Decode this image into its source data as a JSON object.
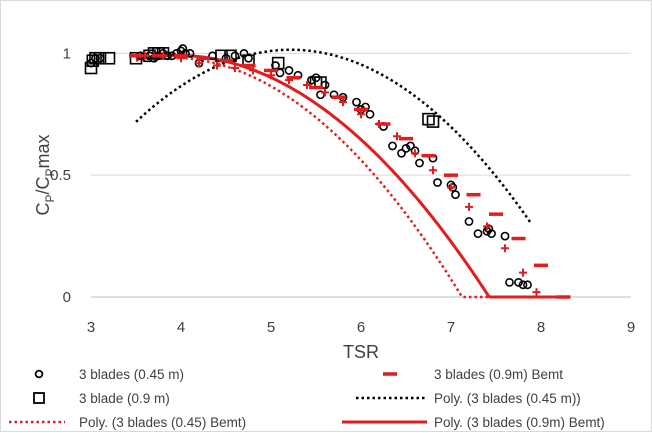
{
  "chart_data": {
    "type": "scatter",
    "title": "",
    "xlabel": "TSR",
    "ylabel_main": "C",
    "ylabel_sub1": "P",
    "ylabel_mid": "/C",
    "ylabel_sub2": "P",
    "ylabel_end": "max",
    "xlim": [
      3,
      9
    ],
    "ylim": [
      0,
      1.1
    ],
    "x_ticks": [
      3,
      4,
      5,
      6,
      7,
      8,
      9
    ],
    "y_ticks": [
      0,
      0.5,
      1
    ],
    "x_tick_labels": [
      "3",
      "4",
      "5",
      "6",
      "7",
      "8",
      "9"
    ],
    "y_tick_labels": [
      "0",
      "0.5",
      "1"
    ],
    "grid": "horizontal",
    "legend_position": "bottom",
    "series": [
      {
        "name": "3 blades (0.45 m)",
        "marker": "circle",
        "color": "#000000",
        "x": [
          3.0,
          3.05,
          3.1,
          3.55,
          3.65,
          3.7,
          3.75,
          3.8,
          3.85,
          3.9,
          3.95,
          4.0,
          4.02,
          4.05,
          4.1,
          4.2,
          4.35,
          4.5,
          4.6,
          4.7,
          4.75,
          5.05,
          5.1,
          5.2,
          5.3,
          5.45,
          5.5,
          5.55,
          5.6,
          5.7,
          5.8,
          5.95,
          6.0,
          6.05,
          6.1,
          6.25,
          6.35,
          6.45,
          6.5,
          6.55,
          6.6,
          6.65,
          6.8,
          6.85,
          7.0,
          7.02,
          7.05,
          7.2,
          7.3,
          7.4,
          7.42,
          7.45,
          7.6,
          7.65,
          7.75,
          7.8,
          7.85
        ],
        "y": [
          0.96,
          0.98,
          0.98,
          0.99,
          0.99,
          0.98,
          0.99,
          1.0,
          0.99,
          0.99,
          1.0,
          1.01,
          1.02,
          1.0,
          1.0,
          0.96,
          0.99,
          0.98,
          0.99,
          1.0,
          0.98,
          0.95,
          0.92,
          0.93,
          0.91,
          0.89,
          0.9,
          0.83,
          0.87,
          0.83,
          0.82,
          0.8,
          0.77,
          0.78,
          0.75,
          0.7,
          0.62,
          0.59,
          0.61,
          0.62,
          0.6,
          0.55,
          0.57,
          0.47,
          0.46,
          0.45,
          0.42,
          0.31,
          0.26,
          0.27,
          0.28,
          0.26,
          0.25,
          0.06,
          0.06,
          0.05,
          0.05
        ]
      },
      {
        "name": "3 blade (0.9 m)",
        "marker": "square",
        "color": "#000000",
        "x": [
          3.0,
          3.02,
          3.05,
          3.1,
          3.2,
          3.5,
          3.65,
          3.7,
          3.75,
          3.8,
          4.45,
          4.55,
          4.75,
          5.08,
          5.5,
          5.55,
          6.75,
          6.8
        ],
        "y": [
          0.94,
          0.97,
          0.98,
          0.98,
          0.98,
          0.98,
          0.99,
          1.0,
          1.0,
          1.0,
          0.99,
          0.99,
          0.97,
          0.96,
          0.88,
          0.88,
          0.73,
          0.72
        ]
      },
      {
        "name": "3 blades (0.45) Bemt",
        "marker": "plus",
        "color": "#e21d1d",
        "x": [
          3.6,
          3.8,
          4.0,
          4.2,
          4.4,
          4.6,
          4.8,
          5.0,
          5.2,
          5.4,
          5.6,
          5.8,
          6.0,
          6.2,
          6.4,
          6.6,
          6.8,
          7.0,
          7.2,
          7.4,
          7.6,
          7.8,
          7.95
        ],
        "y": [
          0.99,
          0.99,
          0.98,
          0.96,
          0.95,
          0.94,
          0.93,
          0.91,
          0.89,
          0.87,
          0.84,
          0.8,
          0.75,
          0.71,
          0.66,
          0.59,
          0.52,
          0.45,
          0.37,
          0.29,
          0.2,
          0.1,
          0.02
        ]
      },
      {
        "name": "3 blades (0.9m) Bemt",
        "marker": "dash",
        "color": "#e21d1d",
        "x": [
          3.5,
          3.75,
          4.0,
          4.25,
          4.5,
          4.75,
          5.0,
          5.25,
          5.5,
          5.75,
          6.0,
          6.25,
          6.5,
          6.75,
          7.0,
          7.25,
          7.5,
          7.75,
          8.0,
          8.25
        ],
        "y": [
          0.99,
          0.99,
          0.99,
          0.98,
          0.97,
          0.95,
          0.93,
          0.9,
          0.86,
          0.82,
          0.77,
          0.71,
          0.65,
          0.58,
          0.5,
          0.42,
          0.34,
          0.24,
          0.13,
          0.0
        ]
      }
    ],
    "trendlines": [
      {
        "name": "Poly. (3 blades (0.45 m))",
        "style": "dotted",
        "color": "#000000",
        "coeffs": [
          -0.1,
          1.044,
          -1.71
        ],
        "x_range": [
          3.5,
          7.88
        ]
      },
      {
        "name": "Poly. (3 blades (0.45) Bemt)",
        "style": "dotted",
        "color": "#e21d1d",
        "coeffs": [
          -0.093,
          0.72,
          -0.41
        ],
        "x_range": [
          3.5,
          7.98
        ]
      },
      {
        "name": "Poly. (3 blades (0.9m) Bemt)",
        "style": "solid",
        "color": "#e21d1d",
        "coeffs": [
          -0.082,
          0.647,
          -0.284
        ],
        "x_range": [
          3.5,
          8.32
        ]
      }
    ]
  }
}
